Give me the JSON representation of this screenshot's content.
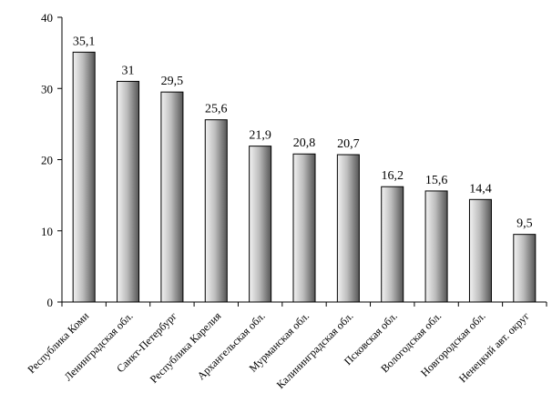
{
  "chart_data": {
    "type": "bar",
    "title": "",
    "xlabel": "",
    "ylabel": "",
    "ylim": [
      0,
      40
    ],
    "yticks": [
      "0",
      "10",
      "20",
      "30",
      "40"
    ],
    "grid": false,
    "categories": [
      "Республика Коми",
      "Ленинградская обл.",
      "Санкт-Петербург",
      "Республика Карелия",
      "Архангельская обл.",
      "Мурманская обл.",
      "Калининградская обл.",
      "Псковская обл.",
      "Вологодская обл.",
      "Новгородская обл.",
      "Ненецкий авт. округ"
    ],
    "values": [
      35.1,
      31,
      29.5,
      25.6,
      21.9,
      20.8,
      20.7,
      16.2,
      15.6,
      14.4,
      9.5
    ],
    "data_labels": [
      "35,1",
      "31",
      "29,5",
      "25,6",
      "21,9",
      "20,8",
      "20,7",
      "16,2",
      "15,6",
      "14,4",
      "9,5"
    ],
    "colors": {
      "bar_light": "#f2f2f2",
      "bar_mid": "#bdbdbd",
      "bar_dark": "#555555",
      "axis": "#000000"
    }
  }
}
